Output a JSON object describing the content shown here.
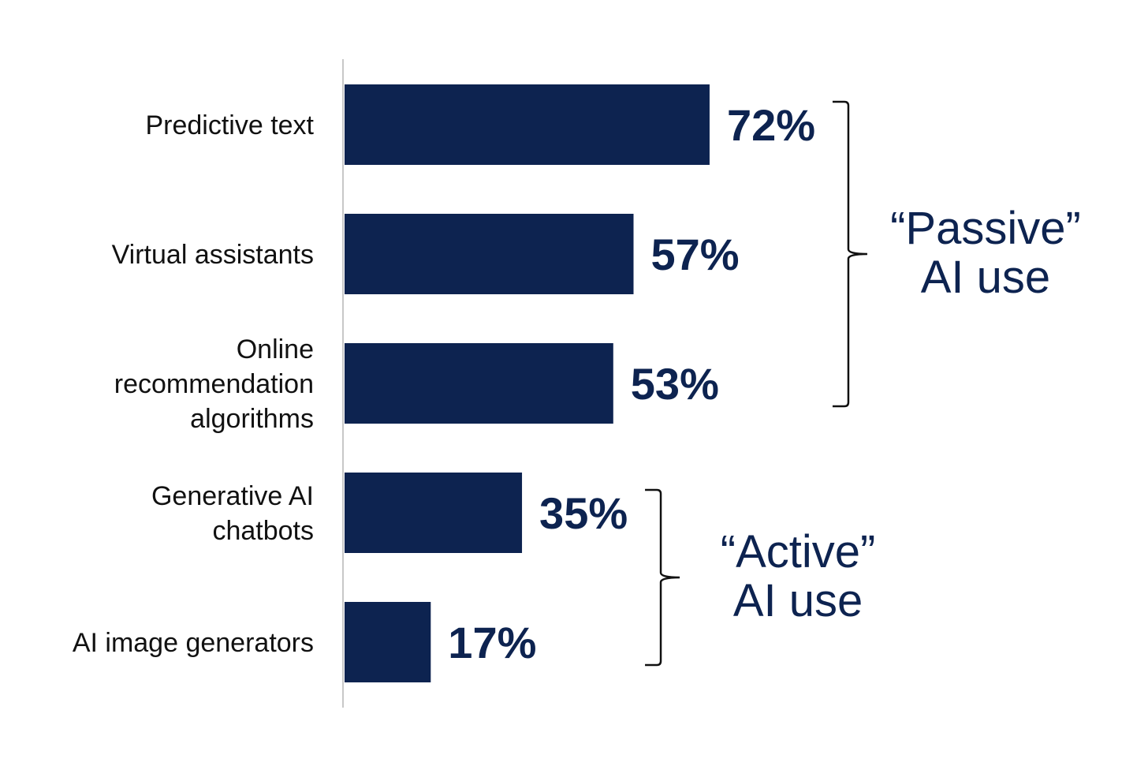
{
  "chart_data": {
    "type": "bar",
    "orientation": "horizontal",
    "title": "",
    "xlabel": "",
    "ylabel": "",
    "xlim": [
      0,
      100
    ],
    "grid": false,
    "legend": "none",
    "bar_color": "#0d2350",
    "label_color": "#0d2350",
    "categories": [
      [
        "Predictive text"
      ],
      [
        "Virtual assistants"
      ],
      [
        "Online",
        "recommendation",
        "algorithms"
      ],
      [
        "Generative AI",
        "chatbots"
      ],
      [
        "AI image generators"
      ]
    ],
    "values": [
      72,
      57,
      53,
      35,
      17
    ],
    "value_labels": [
      "72%",
      "57%",
      "53%",
      "35%",
      "17%"
    ],
    "groups": [
      {
        "label": [
          "“Passive”",
          "AI use"
        ],
        "range": [
          0,
          2
        ]
      },
      {
        "label": [
          "“Active”",
          "AI use"
        ],
        "range": [
          3,
          4
        ]
      }
    ]
  }
}
